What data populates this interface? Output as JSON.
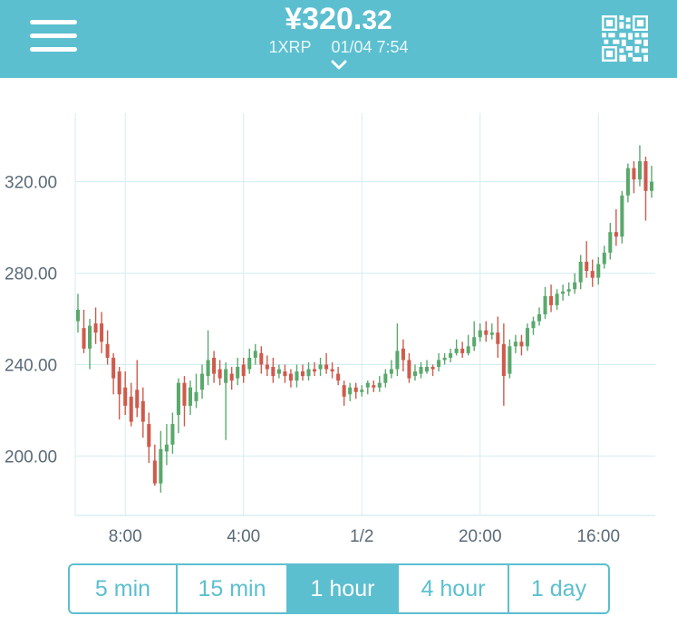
{
  "header": {
    "price_main": "¥320.",
    "price_decimals": "32",
    "pair": "1XRP",
    "datetime": "01/04 7:54",
    "accent_color": "#5bbfcf",
    "icons": {
      "menu": "hamburger-icon",
      "dropdown": "chevron-down-icon",
      "qr": "qr-code-icon"
    }
  },
  "intervals": [
    {
      "label": "5 min",
      "active": false
    },
    {
      "label": "15 min",
      "active": false
    },
    {
      "label": "1 hour",
      "active": true
    },
    {
      "label": "4 hour",
      "active": false
    },
    {
      "label": "1 day",
      "active": false
    }
  ],
  "chart_data": {
    "type": "candlestick",
    "y_ticks": [
      "200.00",
      "240.00",
      "280.00",
      "320.00"
    ],
    "y_tick_values": [
      200,
      240,
      280,
      320
    ],
    "ylim": [
      174,
      350
    ],
    "x_ticks": [
      "8:00",
      "4:00",
      "1/2",
      "20:00",
      "16:00"
    ],
    "x_tick_indices": [
      8,
      28,
      48,
      68,
      88
    ],
    "grid": true,
    "up_color": "#5aa86c",
    "down_color": "#cf5a4c",
    "candles": [
      [
        259,
        264,
        271,
        254
      ],
      [
        256,
        247,
        264,
        245
      ],
      [
        247,
        257,
        260,
        238
      ],
      [
        258,
        254,
        265,
        249
      ],
      [
        258,
        250,
        263,
        245
      ],
      [
        249,
        243,
        255,
        240
      ],
      [
        243,
        234,
        245,
        227
      ],
      [
        237,
        227,
        239,
        216
      ],
      [
        230,
        222,
        237,
        218
      ],
      [
        226,
        215,
        232,
        213
      ],
      [
        229,
        221,
        242,
        217
      ],
      [
        224,
        215,
        230,
        208
      ],
      [
        214,
        204,
        219,
        197
      ],
      [
        198,
        188,
        205,
        187
      ],
      [
        188,
        203,
        211,
        184
      ],
      [
        202,
        205,
        214,
        196
      ],
      [
        205,
        214,
        219,
        201
      ],
      [
        218,
        232,
        234,
        210
      ],
      [
        232,
        222,
        235,
        213
      ],
      [
        222,
        230,
        233,
        218
      ],
      [
        224,
        228,
        236,
        221
      ],
      [
        229,
        236,
        240,
        225
      ],
      [
        235,
        242,
        255,
        231
      ],
      [
        243,
        236,
        246,
        232
      ],
      [
        238,
        234,
        242,
        231
      ],
      [
        232,
        238,
        241,
        207
      ],
      [
        236,
        233,
        239,
        229
      ],
      [
        234,
        239,
        243,
        231
      ],
      [
        240,
        235,
        243,
        232
      ],
      [
        238,
        243,
        247,
        236
      ],
      [
        243,
        246,
        249,
        240
      ],
      [
        245,
        240,
        248,
        236
      ],
      [
        240,
        238,
        244,
        235
      ],
      [
        239,
        235,
        243,
        232
      ],
      [
        236,
        238,
        240,
        234
      ],
      [
        237,
        235,
        240,
        232
      ],
      [
        236,
        233,
        238,
        230
      ],
      [
        233,
        237,
        240,
        230
      ],
      [
        237,
        235,
        240,
        233
      ],
      [
        235,
        238,
        241,
        233
      ],
      [
        238,
        237,
        241,
        235
      ],
      [
        238,
        240,
        243,
        235
      ],
      [
        240,
        238,
        245,
        236
      ],
      [
        238,
        237,
        241,
        234
      ],
      [
        236,
        233,
        239,
        231
      ],
      [
        231,
        226,
        233,
        222
      ],
      [
        227,
        230,
        232,
        224
      ],
      [
        230,
        228,
        232,
        225
      ],
      [
        228,
        229,
        231,
        226
      ],
      [
        230,
        232,
        233,
        227
      ],
      [
        231,
        230,
        233,
        228
      ],
      [
        230,
        232,
        235,
        228
      ],
      [
        232,
        236,
        238,
        230
      ],
      [
        236,
        238,
        242,
        234
      ],
      [
        238,
        246,
        258,
        235
      ],
      [
        247,
        242,
        251,
        237
      ],
      [
        242,
        234,
        245,
        232
      ],
      [
        235,
        237,
        240,
        233
      ],
      [
        236,
        239,
        241,
        234
      ],
      [
        237,
        239,
        242,
        236
      ],
      [
        239,
        238,
        240,
        235
      ],
      [
        239,
        242,
        245,
        237
      ],
      [
        242,
        243,
        245,
        240
      ],
      [
        243,
        245,
        247,
        241
      ],
      [
        245,
        247,
        251,
        244
      ],
      [
        247,
        245,
        250,
        243
      ],
      [
        245,
        248,
        253,
        244
      ],
      [
        248,
        252,
        259,
        246
      ],
      [
        252,
        255,
        258,
        250
      ],
      [
        255,
        253,
        259,
        250
      ],
      [
        253,
        254,
        258,
        251
      ],
      [
        254,
        249,
        261,
        243
      ],
      [
        249,
        235,
        258,
        222
      ],
      [
        236,
        248,
        251,
        234
      ],
      [
        248,
        250,
        253,
        245
      ],
      [
        250,
        248,
        253,
        244
      ],
      [
        248,
        256,
        258,
        246
      ],
      [
        256,
        259,
        261,
        253
      ],
      [
        259,
        262,
        265,
        257
      ],
      [
        262,
        270,
        274,
        260
      ],
      [
        270,
        266,
        275,
        263
      ],
      [
        266,
        271,
        273,
        264
      ],
      [
        271,
        272,
        275,
        268
      ],
      [
        272,
        273,
        276,
        270
      ],
      [
        273,
        276,
        280,
        271
      ],
      [
        276,
        285,
        288,
        273
      ],
      [
        285,
        281,
        294,
        278
      ],
      [
        281,
        278,
        286,
        274
      ],
      [
        278,
        284,
        287,
        275
      ],
      [
        284,
        289,
        292,
        282
      ],
      [
        289,
        298,
        302,
        286
      ],
      [
        298,
        296,
        308,
        292
      ],
      [
        296,
        314,
        316,
        293
      ],
      [
        314,
        326,
        328,
        311
      ],
      [
        326,
        321,
        329,
        315
      ],
      [
        321,
        329,
        336,
        318
      ],
      [
        329,
        316,
        331,
        303
      ],
      [
        316,
        320,
        327,
        313
      ]
    ]
  }
}
